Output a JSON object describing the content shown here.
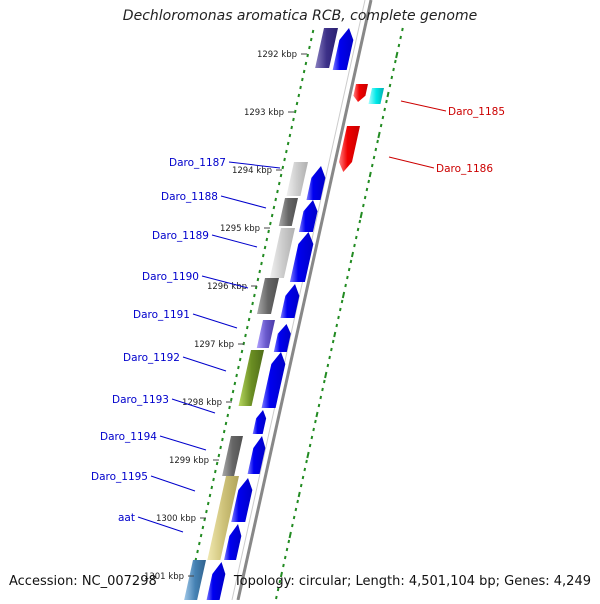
{
  "title": "Dechloromonas aromatica RCB, complete genome",
  "accession": "Accession: NC_007298",
  "topology": "Topology: circular; Length: 4,501,104 bp; Genes: 4,249",
  "kbp_ticks": [
    "1292 kbp",
    "1293 kbp",
    "1294 kbp",
    "1295 kbp",
    "1296 kbp",
    "1297 kbp",
    "1298 kbp",
    "1299 kbp",
    "1300 kbp",
    "1301 kbp"
  ],
  "left_genes": [
    "Daro_1187",
    "Daro_1188",
    "Daro_1189",
    "Daro_1190",
    "Daro_1191",
    "Daro_1192",
    "Daro_1193",
    "Daro_1194",
    "Daro_1195",
    "aat"
  ],
  "right_genes": [
    "Daro_1185",
    "Daro_1186"
  ],
  "colors": {
    "forward_strand": "#0000ee",
    "reverse_strand": "#ee0000",
    "forward_label": "#0000cc",
    "reverse_label": "#cc0000",
    "gc_ticks": "#228b22",
    "backbone": "#888888"
  }
}
